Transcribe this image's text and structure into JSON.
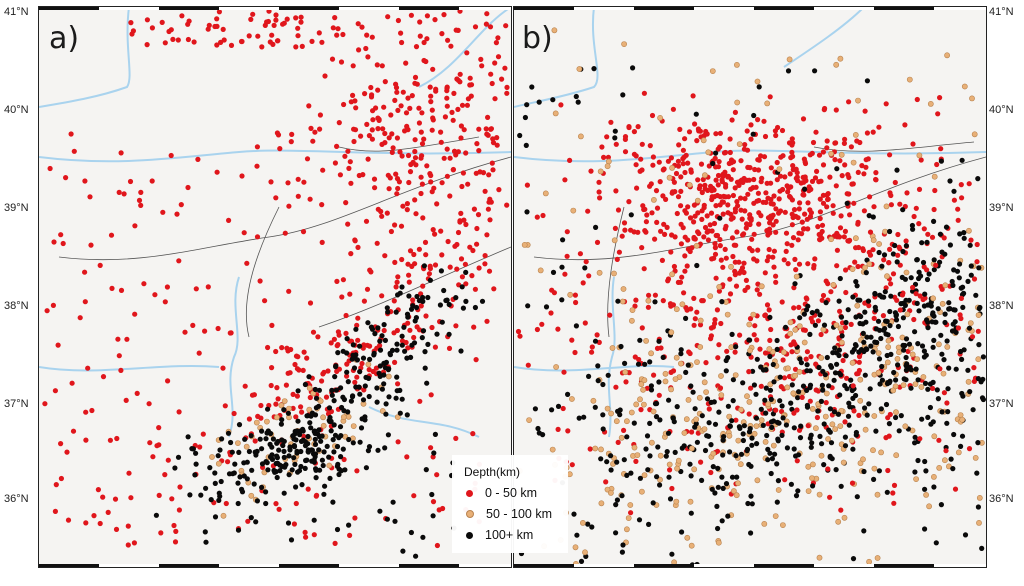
{
  "panels": [
    {
      "label": "a)"
    },
    {
      "label": "b)"
    }
  ],
  "lat_labels": [
    "41°N",
    "40°N",
    "39°N",
    "38°N",
    "37°N",
    "36°N"
  ],
  "legend": {
    "title": "Depth(km)",
    "items": [
      {
        "label": "0 - 50 km",
        "color": "#e0161c"
      },
      {
        "label": "50 - 100 km",
        "color": "#e8b077"
      },
      {
        "label": "100+ km",
        "color": "#0a0a0a"
      }
    ]
  },
  "colors": {
    "shallow": "#e0161c",
    "intermediate": "#e8b077",
    "deep": "#0a0a0a",
    "river": "#a9d3ee",
    "fault": "#555555",
    "terrain": "#f5f4f2"
  }
}
